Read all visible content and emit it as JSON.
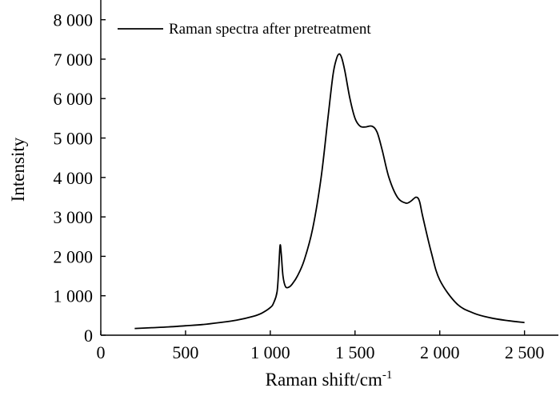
{
  "chart_data": {
    "type": "line",
    "title": "",
    "xlabel": "Raman shift/cm",
    "xlabel_sup": "-1",
    "ylabel": "Intensity",
    "xlim": [
      0,
      2700
    ],
    "ylim": [
      0,
      8500
    ],
    "xticks": [
      0,
      500,
      1000,
      1500,
      2000,
      2500
    ],
    "xtick_labels": [
      "0",
      "500",
      "1 000",
      "1 500",
      "2 000",
      "2 500"
    ],
    "yticks": [
      0,
      1000,
      2000,
      3000,
      4000,
      5000,
      6000,
      7000,
      8000
    ],
    "ytick_labels": [
      "0",
      "1 000",
      "2 000",
      "3 000",
      "4 000",
      "5 000",
      "6 000",
      "7 000",
      "8 000"
    ],
    "grid": false,
    "legend_position": "top-left",
    "series": [
      {
        "name": "Raman spectra after pretreatment",
        "color": "#000000",
        "x": [
          200,
          300,
          400,
          500,
          600,
          700,
          800,
          900,
          950,
          1000,
          1020,
          1040,
          1050,
          1058,
          1065,
          1075,
          1090,
          1110,
          1130,
          1160,
          1200,
          1250,
          1300,
          1340,
          1370,
          1390,
          1405,
          1420,
          1440,
          1470,
          1500,
          1530,
          1560,
          1600,
          1630,
          1660,
          1700,
          1750,
          1800,
          1830,
          1860,
          1880,
          1900,
          1950,
          2000,
          2100,
          2200,
          2300,
          2400,
          2500
        ],
        "y": [
          170,
          190,
          210,
          240,
          270,
          320,
          380,
          480,
          560,
          700,
          820,
          1100,
          1700,
          2280,
          2050,
          1500,
          1230,
          1220,
          1300,
          1500,
          1900,
          2700,
          4000,
          5500,
          6600,
          7000,
          7130,
          7050,
          6700,
          6000,
          5500,
          5300,
          5280,
          5300,
          5150,
          4700,
          4000,
          3500,
          3350,
          3400,
          3500,
          3400,
          3000,
          2100,
          1400,
          800,
          560,
          440,
          370,
          320
        ]
      }
    ]
  }
}
